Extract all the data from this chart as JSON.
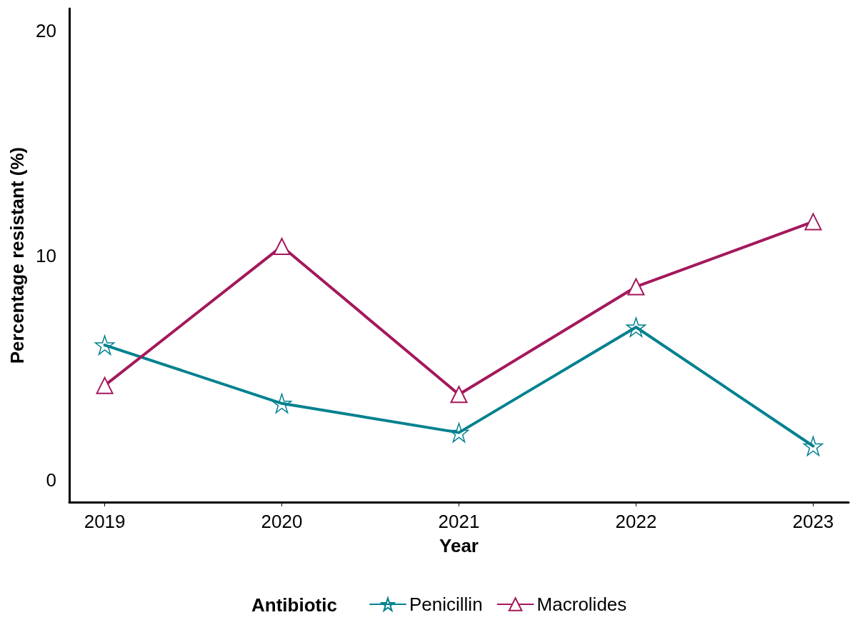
{
  "chart_data": {
    "type": "line",
    "xlabel": "Year",
    "ylabel": "Percentage resistant (%)",
    "legend_title": "Antibiotic",
    "legend": "bottom",
    "grid": false,
    "x": [
      2019,
      2020,
      2021,
      2022,
      2023
    ],
    "xlim": [
      2018.8,
      2023.2
    ],
    "xticks": [
      2019,
      2020,
      2021,
      2022,
      2023
    ],
    "ylim": [
      -1,
      21
    ],
    "yticks": [
      0,
      10,
      20
    ],
    "line_style": "solid",
    "series": [
      {
        "name": "Penicillin",
        "color": "#00818f",
        "marker": "star",
        "values": [
          6.0,
          3.4,
          2.1,
          6.8,
          1.5
        ]
      },
      {
        "name": "Macrolides",
        "color": "#a4185c",
        "marker": "triangle",
        "values": [
          4.2,
          10.4,
          3.8,
          8.6,
          11.5
        ]
      }
    ]
  }
}
